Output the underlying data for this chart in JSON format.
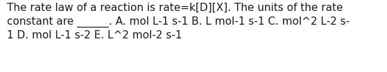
{
  "background_color": "#ffffff",
  "text_color": "#1a1a1a",
  "line1": "The rate law of a reaction is rate=k[D][X]. The units of the rate",
  "line2": "constant are ______. A. mol L-1 s-1 B. L mol-1 s-1 C. mol^2 L-2 s-",
  "line3": "1 D. mol L-1 s-2 E. L^2 mol-2 s-1",
  "font_size": 11.0,
  "font_family": "DejaVu Sans",
  "font_weight": "normal",
  "figwidth": 5.58,
  "figheight": 1.05,
  "dpi": 100
}
